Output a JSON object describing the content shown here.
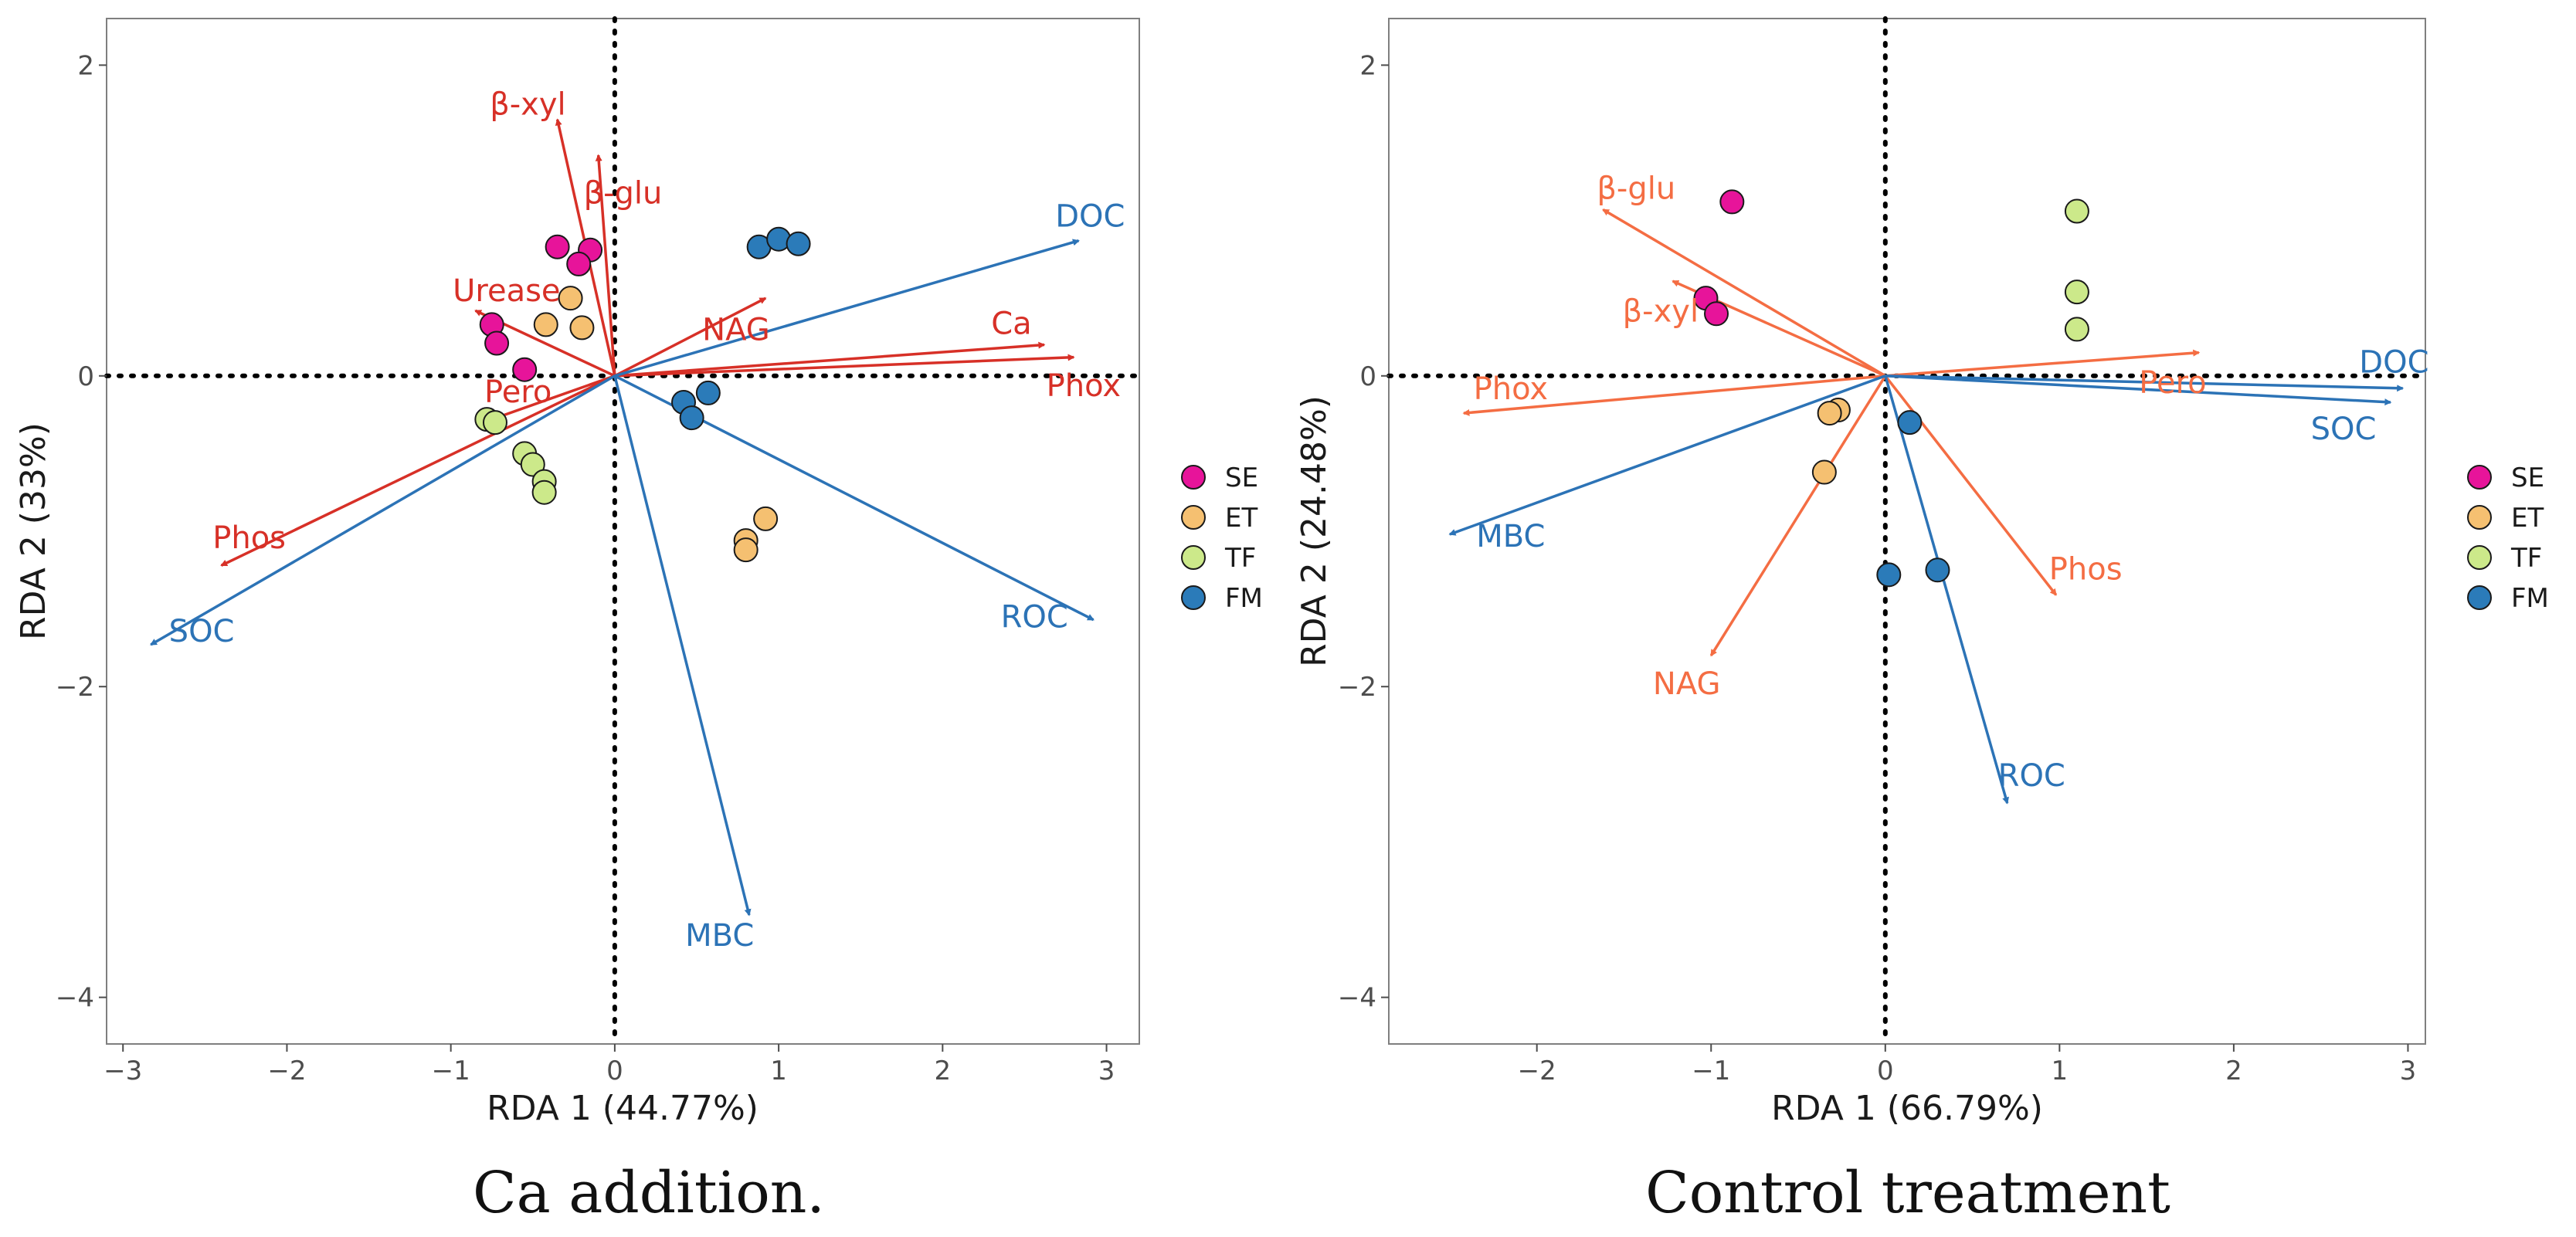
{
  "colors": {
    "SE": "#e7149a",
    "ET": "#f5c071",
    "TF": "#cce98a",
    "FM": "#2b7bb9",
    "enzyme_ca": "#d73027",
    "enzyme_control": "#f46d43",
    "carbon": "#2c73b6"
  },
  "chart_data": [
    {
      "type": "scatter",
      "caption": "Ca addition.",
      "xlabel": "RDA 1 (44.77%)",
      "ylabel": "RDA 2 (33%)",
      "xlim": [
        -3.1,
        3.2
      ],
      "ylim": [
        -4.3,
        2.3
      ],
      "xticks": [
        -3,
        -2,
        -1,
        0,
        1,
        2,
        3
      ],
      "yticks": [
        2,
        0,
        -2,
        -4
      ],
      "xtick_labels": [
        "−3",
        "−2",
        "−1",
        "0",
        "1",
        "2",
        "3"
      ],
      "ytick_labels": [
        "2",
        "0",
        "−2",
        "−4"
      ],
      "legend": [
        "SE",
        "ET",
        "TF",
        "FM"
      ],
      "points": {
        "SE": [
          [
            -0.35,
            0.83
          ],
          [
            -0.15,
            0.81
          ],
          [
            -0.22,
            0.72
          ],
          [
            -0.75,
            0.33
          ],
          [
            -0.72,
            0.21
          ],
          [
            -0.55,
            0.04
          ]
        ],
        "ET": [
          [
            -0.27,
            0.5
          ],
          [
            -0.42,
            0.33
          ],
          [
            -0.2,
            0.31
          ],
          [
            0.92,
            -0.92
          ],
          [
            0.8,
            -1.06
          ],
          [
            0.8,
            -1.12
          ]
        ],
        "TF": [
          [
            -0.78,
            -0.28
          ],
          [
            -0.73,
            -0.3
          ],
          [
            -0.55,
            -0.5
          ],
          [
            -0.5,
            -0.57
          ],
          [
            -0.43,
            -0.68
          ],
          [
            -0.43,
            -0.75
          ]
        ],
        "FM": [
          [
            0.88,
            0.83
          ],
          [
            1.0,
            0.88
          ],
          [
            1.12,
            0.85
          ],
          [
            0.42,
            -0.17
          ],
          [
            0.57,
            -0.11
          ],
          [
            0.47,
            -0.27
          ]
        ]
      },
      "arrows": [
        {
          "label": "β-xyl",
          "x": -0.35,
          "y": 1.65,
          "group": "enzyme",
          "lx": -0.53,
          "ly": 1.75
        },
        {
          "label": "β-glu",
          "x": -0.1,
          "y": 1.42,
          "group": "enzyme",
          "lx": 0.05,
          "ly": 1.18
        },
        {
          "label": "Urease",
          "x": -0.85,
          "y": 0.42,
          "group": "enzyme",
          "lx": -0.66,
          "ly": 0.55
        },
        {
          "label": "NAG",
          "x": 0.92,
          "y": 0.5,
          "group": "enzyme",
          "lx": 0.74,
          "ly": 0.3
        },
        {
          "label": "Ca",
          "x": 2.62,
          "y": 0.2,
          "group": "enzyme",
          "lx": 2.42,
          "ly": 0.34
        },
        {
          "label": "Phox",
          "x": 2.8,
          "y": 0.12,
          "group": "enzyme",
          "lx": 2.86,
          "ly": -0.06
        },
        {
          "label": "Pero",
          "x": -0.75,
          "y": -0.28,
          "group": "enzyme",
          "lx": -0.59,
          "ly": -0.1
        },
        {
          "label": "Phos",
          "x": -2.4,
          "y": -1.22,
          "group": "enzyme",
          "lx": -2.23,
          "ly": -1.04
        },
        {
          "label": "DOC",
          "x": 2.83,
          "y": 0.87,
          "group": "carbon",
          "lx": 2.9,
          "ly": 1.03
        },
        {
          "label": "ROC",
          "x": 2.92,
          "y": -1.57,
          "group": "carbon",
          "lx": 2.56,
          "ly": -1.55
        },
        {
          "label": "SOC",
          "x": -2.83,
          "y": -1.73,
          "group": "carbon",
          "lx": -2.52,
          "ly": -1.64
        },
        {
          "label": "MBC",
          "x": 0.82,
          "y": -3.47,
          "group": "carbon",
          "lx": 0.64,
          "ly": -3.6
        }
      ]
    },
    {
      "type": "scatter",
      "caption": "Control treatment",
      "xlabel": "RDA 1 (66.79%)",
      "ylabel": "RDA 2 (24.48%)",
      "xlim": [
        -2.85,
        3.1
      ],
      "ylim": [
        -4.3,
        2.3
      ],
      "xticks": [
        -2,
        -1,
        0,
        1,
        2,
        3
      ],
      "yticks": [
        2,
        0,
        -2,
        -4
      ],
      "xtick_labels": [
        "−2",
        "−1",
        "0",
        "1",
        "2",
        "3"
      ],
      "ytick_labels": [
        "2",
        "0",
        "−2",
        "−4"
      ],
      "legend": [
        "SE",
        "ET",
        "TF",
        "FM"
      ],
      "points": {
        "SE": [
          [
            -0.88,
            1.12
          ],
          [
            -1.03,
            0.5
          ],
          [
            -0.97,
            0.4
          ]
        ],
        "ET": [
          [
            -0.27,
            -0.22
          ],
          [
            -0.32,
            -0.24
          ],
          [
            -0.35,
            -0.62
          ]
        ],
        "TF": [
          [
            1.1,
            1.06
          ],
          [
            1.1,
            0.54
          ],
          [
            1.1,
            0.3
          ]
        ],
        "FM": [
          [
            0.14,
            -0.3
          ],
          [
            0.02,
            -1.28
          ],
          [
            0.3,
            -1.25
          ]
        ]
      },
      "arrows": [
        {
          "label": "β-glu",
          "x": -1.62,
          "y": 1.07,
          "group": "enzyme",
          "lx": -1.43,
          "ly": 1.21
        },
        {
          "label": "β-xyl",
          "x": -1.22,
          "y": 0.61,
          "group": "enzyme",
          "lx": -1.29,
          "ly": 0.42
        },
        {
          "label": "Phox",
          "x": -2.42,
          "y": -0.24,
          "group": "enzyme",
          "lx": -2.15,
          "ly": -0.08
        },
        {
          "label": "Pero",
          "x": 1.8,
          "y": 0.15,
          "group": "enzyme",
          "lx": 1.65,
          "ly": -0.04
        },
        {
          "label": "NAG",
          "x": -1.0,
          "y": -1.8,
          "group": "enzyme",
          "lx": -1.14,
          "ly": -1.98
        },
        {
          "label": "Phos",
          "x": 0.98,
          "y": -1.41,
          "group": "enzyme",
          "lx": 1.15,
          "ly": -1.24
        },
        {
          "label": "DOC",
          "x": 2.97,
          "y": -0.08,
          "group": "carbon",
          "lx": 2.92,
          "ly": 0.09
        },
        {
          "label": "SOC",
          "x": 2.9,
          "y": -0.17,
          "group": "carbon",
          "lx": 2.63,
          "ly": -0.34
        },
        {
          "label": "MBC",
          "x": -2.5,
          "y": -1.02,
          "group": "carbon",
          "lx": -2.15,
          "ly": -1.03
        },
        {
          "label": "ROC",
          "x": 0.7,
          "y": -2.75,
          "group": "carbon",
          "lx": 0.84,
          "ly": -2.57
        }
      ]
    }
  ]
}
